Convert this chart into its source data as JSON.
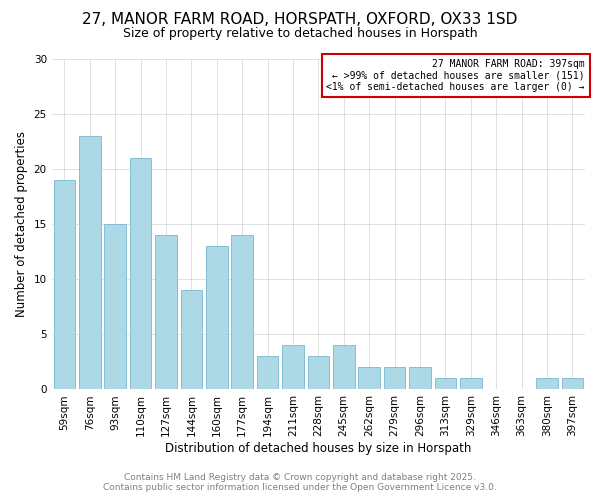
{
  "title": "27, MANOR FARM ROAD, HORSPATH, OXFORD, OX33 1SD",
  "subtitle": "Size of property relative to detached houses in Horspath",
  "xlabel": "Distribution of detached houses by size in Horspath",
  "ylabel": "Number of detached properties",
  "bar_color": "#add8e6",
  "bar_edge_color": "#7ab8d4",
  "categories": [
    "59sqm",
    "76sqm",
    "93sqm",
    "110sqm",
    "127sqm",
    "144sqm",
    "160sqm",
    "177sqm",
    "194sqm",
    "211sqm",
    "228sqm",
    "245sqm",
    "262sqm",
    "279sqm",
    "296sqm",
    "313sqm",
    "329sqm",
    "346sqm",
    "363sqm",
    "380sqm",
    "397sqm"
  ],
  "values": [
    19,
    23,
    15,
    21,
    14,
    9,
    13,
    14,
    3,
    4,
    3,
    4,
    2,
    2,
    2,
    1,
    1,
    0,
    0,
    1,
    1
  ],
  "ylim": [
    0,
    30
  ],
  "yticks": [
    0,
    5,
    10,
    15,
    20,
    25,
    30
  ],
  "legend_title": "27 MANOR FARM ROAD: 397sqm",
  "legend_line1": "← >99% of detached houses are smaller (151)",
  "legend_line2": "<1% of semi-detached houses are larger (0) →",
  "legend_box_color": "#cc0000",
  "footer1": "Contains HM Land Registry data © Crown copyright and database right 2025.",
  "footer2": "Contains public sector information licensed under the Open Government Licence v3.0.",
  "title_fontsize": 11,
  "subtitle_fontsize": 9,
  "axis_label_fontsize": 8.5,
  "tick_fontsize": 7.5,
  "footer_fontsize": 6.5
}
